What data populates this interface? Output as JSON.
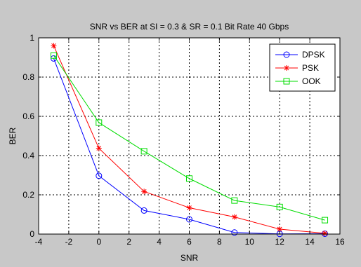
{
  "chart_data": {
    "type": "line",
    "title": "SNR vs BER at SI = 0.3 & SR = 0.1  Bit Rate 40 Gbps",
    "xlabel": "SNR",
    "ylabel": "BER",
    "xlim": [
      -4,
      16
    ],
    "ylim": [
      0,
      1
    ],
    "xticks": [
      -4,
      -2,
      0,
      2,
      4,
      6,
      8,
      10,
      12,
      14,
      16
    ],
    "yticks": [
      0,
      0.2,
      0.4,
      0.6,
      0.8,
      1
    ],
    "xtick_labels": [
      "-4",
      "-2",
      "0",
      "2",
      "4",
      "6",
      "8",
      "10",
      "12",
      "14",
      "16"
    ],
    "ytick_labels": [
      "0",
      "0.2",
      "0.4",
      "0.6",
      "0.8",
      "1"
    ],
    "grid": true,
    "legend_position": "top-right",
    "x": [
      -3,
      0,
      3,
      6,
      9,
      12,
      15
    ],
    "series": [
      {
        "name": "DPSK",
        "color": "#0000ff",
        "marker": "circle",
        "values": [
          0.895,
          0.297,
          0.12,
          0.075,
          0.008,
          0.001,
          0.002
        ]
      },
      {
        "name": "PSK",
        "color": "#ff0000",
        "marker": "star",
        "values": [
          0.96,
          0.437,
          0.217,
          0.134,
          0.087,
          0.025,
          0.004
        ]
      },
      {
        "name": "OOK",
        "color": "#00dd00",
        "marker": "square",
        "values": [
          0.91,
          0.568,
          0.422,
          0.283,
          0.171,
          0.138,
          0.071
        ]
      }
    ]
  }
}
